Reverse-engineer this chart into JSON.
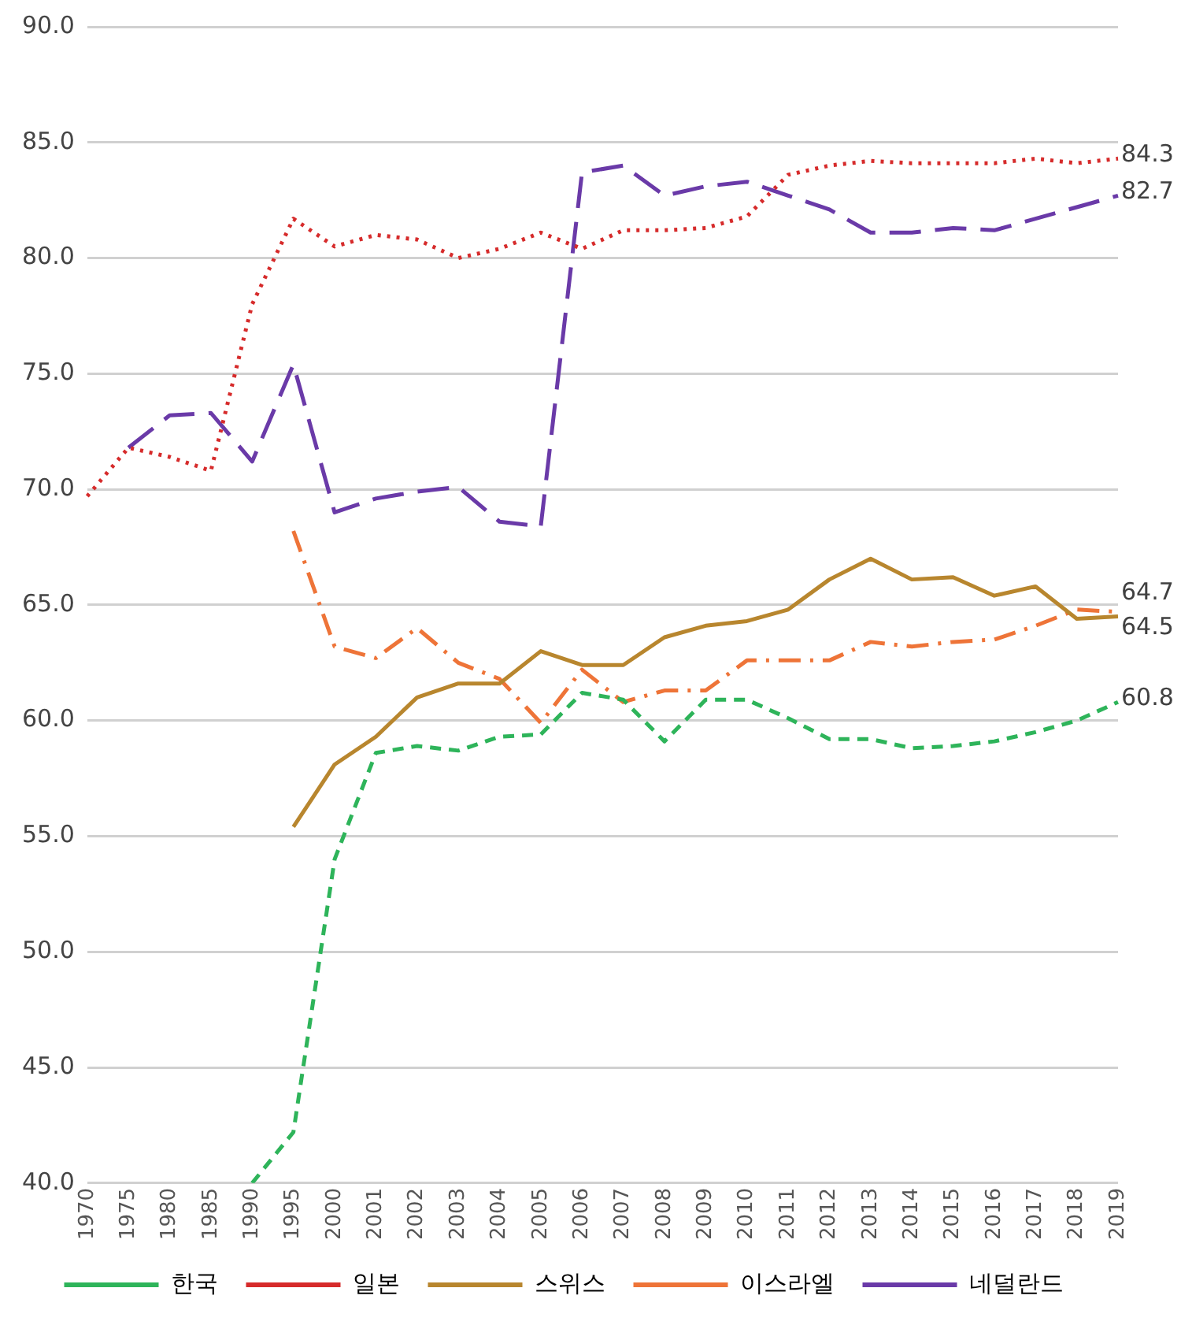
{
  "chart_data": {
    "type": "line",
    "categories": [
      "1970",
      "1975",
      "1980",
      "1985",
      "1990",
      "1995",
      "2000",
      "2001",
      "2002",
      "2003",
      "2004",
      "2005",
      "2006",
      "2007",
      "2008",
      "2009",
      "2010",
      "2011",
      "2012",
      "2013",
      "2014",
      "2015",
      "2016",
      "2017",
      "2018",
      "2019"
    ],
    "series": [
      {
        "name": "한국",
        "color": "#2eb45a",
        "line_style": "dashed",
        "values": [
          null,
          null,
          null,
          null,
          40.0,
          42.2,
          54.0,
          58.6,
          58.9,
          58.7,
          59.3,
          59.4,
          61.2,
          60.9,
          59.1,
          60.9,
          60.9,
          60.1,
          59.2,
          59.2,
          58.8,
          58.9,
          59.1,
          59.5,
          60.0,
          60.8
        ],
        "value_labels": [
          null,
          null,
          null,
          null,
          null,
          null,
          null,
          null,
          null,
          null,
          null,
          null,
          null,
          null,
          null,
          null,
          null,
          null,
          null,
          null,
          null,
          null,
          null,
          null,
          null,
          "60.8"
        ]
      },
      {
        "name": "일본",
        "color": "#d62b2b",
        "line_style": "dotted",
        "values": [
          69.7,
          71.8,
          71.4,
          70.8,
          78.0,
          81.7,
          80.5,
          81.0,
          80.8,
          80.0,
          80.4,
          81.1,
          80.4,
          81.2,
          81.2,
          81.3,
          81.8,
          83.6,
          84.0,
          84.2,
          84.1,
          84.1,
          84.1,
          84.3,
          84.1,
          84.3
        ],
        "value_labels": [
          null,
          null,
          null,
          null,
          null,
          null,
          null,
          null,
          null,
          null,
          null,
          null,
          null,
          null,
          null,
          null,
          null,
          null,
          null,
          null,
          null,
          null,
          null,
          null,
          null,
          "84.3"
        ]
      },
      {
        "name": "스위스",
        "color": "#b8862e",
        "line_style": "solid",
        "values": [
          null,
          null,
          null,
          null,
          null,
          55.4,
          58.1,
          59.3,
          61.0,
          61.6,
          61.6,
          63.0,
          62.4,
          62.4,
          63.6,
          64.1,
          64.3,
          64.8,
          66.1,
          67.0,
          66.1,
          66.2,
          65.4,
          65.8,
          64.4,
          64.5
        ],
        "value_labels": [
          null,
          null,
          null,
          null,
          null,
          null,
          null,
          null,
          null,
          null,
          null,
          null,
          null,
          null,
          null,
          null,
          null,
          null,
          null,
          null,
          null,
          null,
          null,
          null,
          null,
          "64.5"
        ]
      },
      {
        "name": "이스라엘",
        "color": "#ee7438",
        "line_style": "dashdot",
        "values": [
          null,
          null,
          null,
          null,
          null,
          68.2,
          63.2,
          62.7,
          64.0,
          62.5,
          61.8,
          59.9,
          62.2,
          60.8,
          61.3,
          61.3,
          62.6,
          62.6,
          62.6,
          63.4,
          63.2,
          63.4,
          63.5,
          64.1,
          64.8,
          64.7
        ],
        "value_labels": [
          null,
          null,
          null,
          null,
          null,
          null,
          null,
          null,
          null,
          null,
          null,
          null,
          null,
          null,
          null,
          null,
          null,
          null,
          null,
          null,
          null,
          null,
          null,
          null,
          null,
          "64.7"
        ]
      },
      {
        "name": "네덜란드",
        "color": "#6a3aa8",
        "line_style": "longdash",
        "values": [
          null,
          71.8,
          73.2,
          73.3,
          71.2,
          75.4,
          69.0,
          69.6,
          69.9,
          70.1,
          68.6,
          68.4,
          83.7,
          84.0,
          82.7,
          83.1,
          83.3,
          82.7,
          82.1,
          81.1,
          81.1,
          81.3,
          81.2,
          81.7,
          82.2,
          82.7
        ],
        "value_labels": [
          null,
          null,
          null,
          null,
          null,
          null,
          null,
          null,
          null,
          null,
          null,
          null,
          null,
          null,
          null,
          null,
          null,
          null,
          null,
          null,
          null,
          null,
          null,
          null,
          null,
          "82.7"
        ]
      }
    ],
    "ylim": [
      40,
      90
    ],
    "yticks": [
      {
        "value": 40,
        "label": "40.0"
      },
      {
        "value": 45,
        "label": "45.0"
      },
      {
        "value": 50,
        "label": "50.0"
      },
      {
        "value": 55,
        "label": "55.0"
      },
      {
        "value": 60,
        "label": "60.0"
      },
      {
        "value": 65,
        "label": "65.0"
      },
      {
        "value": 70,
        "label": "70.0"
      },
      {
        "value": 75,
        "label": "75.0"
      },
      {
        "value": 80,
        "label": "80.0"
      },
      {
        "value": 85,
        "label": "85.0"
      },
      {
        "value": 90,
        "label": "90.0"
      }
    ],
    "grid": "y",
    "legend": "bottom",
    "marker": "none"
  }
}
